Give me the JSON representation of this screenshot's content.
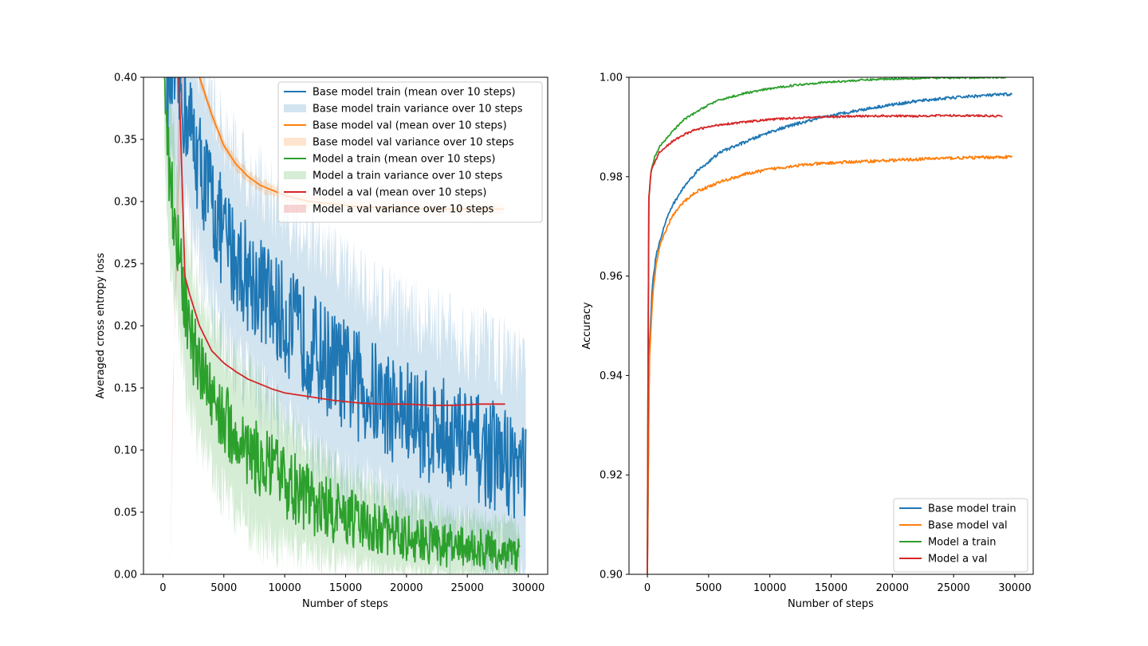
{
  "colors": {
    "base_train": "#1f77b4",
    "base_val": "#ff7f0e",
    "model_a_train": "#2ca02c",
    "model_a_val": "#d62728"
  },
  "chart_data": [
    {
      "type": "line",
      "xlabel": "Number of steps",
      "ylabel": "Averaged cross entropy loss",
      "xlim": [
        -1600,
        31600
      ],
      "ylim": [
        0.0,
        0.4
      ],
      "xticks": [
        "0",
        "5000",
        "10000",
        "15000",
        "20000",
        "25000",
        "30000"
      ],
      "yticks": [
        "0.00",
        "0.05",
        "0.10",
        "0.15",
        "0.20",
        "0.25",
        "0.30",
        "0.35",
        "0.40"
      ],
      "grid": false,
      "legend_position": "top-right",
      "legend": [
        {
          "label": "Base model train (mean over 10 steps)",
          "kind": "line",
          "series": "base_train"
        },
        {
          "label": "Base model train variance over 10 steps",
          "kind": "band",
          "series": "base_train"
        },
        {
          "label": "Base model val (mean over 10 steps)",
          "kind": "line",
          "series": "base_val"
        },
        {
          "label": "Base model val variance over 10 steps",
          "kind": "band",
          "series": "base_val"
        },
        {
          "label": "Model a train (mean over 10 steps)",
          "kind": "line",
          "series": "model_a_train"
        },
        {
          "label": "Model a train variance over 10 steps",
          "kind": "band",
          "series": "model_a_train"
        },
        {
          "label": "Model a val (mean over 10 steps)",
          "kind": "line",
          "series": "model_a_val"
        },
        {
          "label": "Model a val variance over 10 steps",
          "kind": "band",
          "series": "model_a_val"
        }
      ],
      "series": [
        {
          "name": "Base model train (mean over 10 steps)",
          "key": "base_train",
          "x": [
            300,
            1000,
            2000,
            3000,
            4000,
            5000,
            6000,
            7000,
            8000,
            10000,
            12000,
            14000,
            16000,
            18000,
            20000,
            22000,
            24000,
            26000,
            28000,
            29800
          ],
          "y": [
            0.4,
            0.4,
            0.37,
            0.33,
            0.3,
            0.27,
            0.255,
            0.24,
            0.23,
            0.205,
            0.185,
            0.168,
            0.152,
            0.14,
            0.128,
            0.118,
            0.11,
            0.1,
            0.092,
            0.085
          ],
          "noise": 0.045,
          "band": 0.07
        },
        {
          "name": "Base model val (mean over 10 steps)",
          "key": "base_val",
          "x": [
            3000,
            4000,
            5000,
            6000,
            7000,
            8000,
            10000,
            12000,
            14000,
            16000,
            18000,
            20000,
            22000,
            24000,
            26000,
            28000
          ],
          "y": [
            0.4,
            0.37,
            0.345,
            0.33,
            0.32,
            0.313,
            0.305,
            0.3,
            0.298,
            0.296,
            0.295,
            0.295,
            0.294,
            0.294,
            0.294,
            0.294
          ],
          "noise": 0.0,
          "band": 0.004
        },
        {
          "name": "Model a train (mean over 10 steps)",
          "key": "model_a_train",
          "x": [
            100,
            500,
            1000,
            2000,
            3000,
            4000,
            5000,
            6000,
            8000,
            10000,
            12000,
            14000,
            16000,
            18000,
            20000,
            22000,
            24000,
            26000,
            28000,
            29300
          ],
          "y": [
            0.4,
            0.33,
            0.28,
            0.2,
            0.165,
            0.145,
            0.125,
            0.11,
            0.09,
            0.075,
            0.06,
            0.05,
            0.042,
            0.035,
            0.03,
            0.026,
            0.022,
            0.02,
            0.018,
            0.015
          ],
          "noise": 0.03,
          "band": 0.05
        },
        {
          "name": "Model a val (mean over 10 steps)",
          "key": "model_a_val",
          "x": [
            1300,
            1500,
            1800,
            2200,
            3000,
            4000,
            5000,
            6000,
            7000,
            8000,
            9000,
            10000,
            12000,
            14000,
            16000,
            18000,
            20000,
            22000,
            24000,
            26000,
            28100
          ],
          "y": [
            0.4,
            0.34,
            0.24,
            0.225,
            0.2,
            0.18,
            0.17,
            0.163,
            0.157,
            0.153,
            0.149,
            0.146,
            0.143,
            0.14,
            0.138,
            0.137,
            0.137,
            0.136,
            0.136,
            0.137,
            0.137
          ],
          "noise": 0.0,
          "band": 0.0
        }
      ]
    },
    {
      "type": "line",
      "xlabel": "Number of steps",
      "ylabel": "Accuracy",
      "xlim": [
        -1500,
        31500
      ],
      "ylim": [
        0.9,
        1.0
      ],
      "xticks": [
        "0",
        "5000",
        "10000",
        "15000",
        "20000",
        "25000",
        "30000"
      ],
      "yticks": [
        "0.90",
        "0.92",
        "0.94",
        "0.96",
        "0.98",
        "1.00"
      ],
      "grid": false,
      "legend_position": "bottom-right",
      "legend": [
        {
          "label": "Base model train",
          "kind": "line",
          "series": "base_train"
        },
        {
          "label": "Base model val",
          "kind": "line",
          "series": "base_val"
        },
        {
          "label": "Model a train",
          "kind": "line",
          "series": "model_a_train"
        },
        {
          "label": "Model a val",
          "kind": "line",
          "series": "model_a_val"
        }
      ],
      "series": [
        {
          "name": "Base model train",
          "key": "base_train",
          "x": [
            0,
            150,
            400,
            700,
            1000,
            1500,
            2000,
            3000,
            4000,
            5000,
            6000,
            8000,
            10000,
            12000,
            14000,
            16000,
            18000,
            20000,
            22000,
            24000,
            26000,
            28000,
            29800
          ],
          "y": [
            0.9,
            0.945,
            0.958,
            0.964,
            0.967,
            0.971,
            0.974,
            0.978,
            0.981,
            0.983,
            0.985,
            0.987,
            0.989,
            0.9905,
            0.9917,
            0.9928,
            0.9937,
            0.9945,
            0.9952,
            0.9957,
            0.9961,
            0.9964,
            0.9966
          ],
          "noise": 0.0003
        },
        {
          "name": "Base model val",
          "key": "base_val",
          "x": [
            0,
            150,
            400,
            700,
            1000,
            1500,
            2000,
            3000,
            4000,
            5000,
            6000,
            8000,
            10000,
            12000,
            14000,
            16000,
            18000,
            20000,
            22000,
            24000,
            26000,
            28000,
            29800
          ],
          "y": [
            0.9,
            0.942,
            0.955,
            0.962,
            0.966,
            0.969,
            0.972,
            0.975,
            0.977,
            0.978,
            0.979,
            0.9805,
            0.9815,
            0.9822,
            0.9826,
            0.9829,
            0.9831,
            0.9833,
            0.9835,
            0.9837,
            0.9838,
            0.9839,
            0.984
          ],
          "noise": 0.0003
        },
        {
          "name": "Model a train",
          "key": "model_a_train",
          "x": [
            0,
            100,
            300,
            600,
            1000,
            2000,
            3000,
            4000,
            5000,
            6000,
            8000,
            10000,
            12000,
            14000,
            16000,
            18000,
            20000,
            22000,
            24000,
            26000,
            28000,
            29300
          ],
          "y": [
            0.9,
            0.975,
            0.981,
            0.984,
            0.986,
            0.989,
            0.9915,
            0.993,
            0.9945,
            0.9955,
            0.9968,
            0.9977,
            0.9984,
            0.9989,
            0.9992,
            0.9995,
            0.9997,
            0.9998,
            0.9999,
            0.9999,
            1.0,
            1.0
          ],
          "noise": 0.0002
        },
        {
          "name": "Model a val",
          "key": "model_a_val",
          "x": [
            0,
            100,
            300,
            600,
            1000,
            2000,
            3000,
            4000,
            5000,
            6000,
            8000,
            10000,
            12000,
            14000,
            16000,
            18000,
            20000,
            22000,
            24000,
            26000,
            28000,
            29000
          ],
          "y": [
            0.9,
            0.975,
            0.981,
            0.983,
            0.985,
            0.987,
            0.9885,
            0.9895,
            0.99,
            0.9905,
            0.991,
            0.9915,
            0.9918,
            0.992,
            0.9921,
            0.9922,
            0.9922,
            0.9922,
            0.9923,
            0.9923,
            0.9922,
            0.9922
          ],
          "noise": 0.0002
        }
      ]
    }
  ]
}
